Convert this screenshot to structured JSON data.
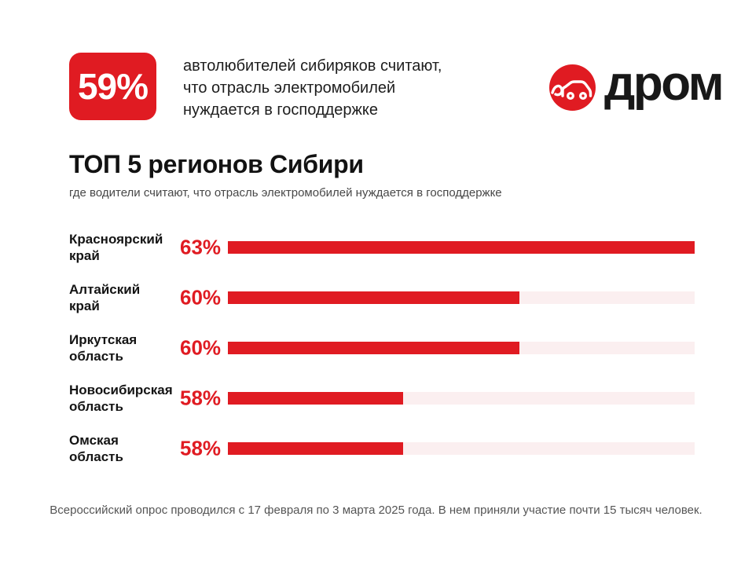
{
  "colors": {
    "brand_red": "#e01b22",
    "track_pink": "#fbeff0",
    "text_dark": "#1d1d1d",
    "text_gray": "#555555"
  },
  "header": {
    "stat_value": "59%",
    "stat_text": "автолюбителей сибиряков считают,\nчто отрасль электромобилей\nнуждается в господдержке",
    "logo_word": "дром",
    "logo_icon": "drom-car-icon"
  },
  "chart_data": {
    "type": "bar",
    "orientation": "horizontal",
    "title": "ТОП 5 регионов Сибири",
    "subtitle": "где водители считают, что отрасль электромобилей нуждается в господдержке",
    "categories": [
      "Красноярский край",
      "Алтайский край",
      "Иркутская область",
      "Новосибирская область",
      "Омская область"
    ],
    "values": [
      63,
      60,
      60,
      58,
      58
    ],
    "unit": "%",
    "value_labels": [
      "63%",
      "60%",
      "60%",
      "58%",
      "58%"
    ],
    "bar_axis": {
      "min": 55,
      "max": 63
    },
    "grid": false,
    "legend": false,
    "rows": [
      {
        "label": "Красноярский\nкрай",
        "value": 63,
        "value_label": "63%"
      },
      {
        "label": "Алтайский\nкрай",
        "value": 60,
        "value_label": "60%"
      },
      {
        "label": "Иркутская\nобласть",
        "value": 60,
        "value_label": "60%"
      },
      {
        "label": "Новосибирская\nобласть",
        "value": 58,
        "value_label": "58%"
      },
      {
        "label": "Омская\nобласть",
        "value": 58,
        "value_label": "58%"
      }
    ]
  },
  "footer": {
    "note": "Всероссийский опрос проводился с 17 февраля по 3 марта 2025 года. В нем приняли участие почти 15 тысяч человек."
  }
}
